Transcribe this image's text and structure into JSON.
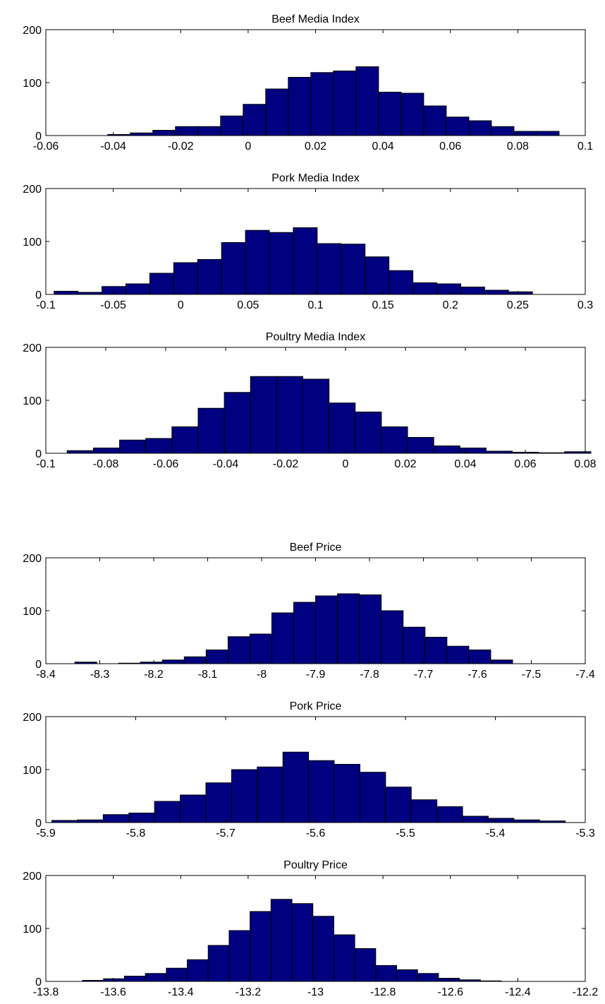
{
  "chart_data": [
    {
      "type": "bar",
      "title": "Beef Media Index",
      "xlim": [
        -0.06,
        0.1
      ],
      "ylim": [
        0,
        200
      ],
      "xticks": [
        "-0.06",
        "-0.04",
        "-0.02",
        "0",
        "0.02",
        "0.04",
        "0.06",
        "0.08",
        "0.1"
      ],
      "yticks": [
        "0",
        "100",
        "200"
      ],
      "bin_range": [
        -0.0383,
        0.0889
      ],
      "values": [
        2,
        5,
        10,
        17,
        17,
        37,
        59,
        88,
        110,
        119,
        122,
        130,
        82,
        80,
        56,
        35,
        28,
        17,
        8,
        8
      ],
      "bar_color": "#000080"
    },
    {
      "type": "bar",
      "title": "Pork Media Index",
      "xlim": [
        -0.1,
        0.3
      ],
      "ylim": [
        0,
        200
      ],
      "xticks": [
        "-0.1",
        "-0.05",
        "0",
        "0.05",
        "0.1",
        "0.15",
        "0.2",
        "0.25",
        "0.3"
      ],
      "yticks": [
        "0",
        "100",
        "200"
      ],
      "bin_range": [
        -0.085,
        0.252
      ],
      "values": [
        6,
        4,
        15,
        20,
        40,
        60,
        66,
        98,
        121,
        117,
        126,
        96,
        95,
        71,
        45,
        22,
        20,
        14,
        8,
        5
      ],
      "bar_color": "#000080"
    },
    {
      "type": "bar",
      "title": "Poultry Media Index",
      "xlim": [
        -0.1,
        0.08
      ],
      "ylim": [
        0,
        200
      ],
      "xticks": [
        "-0.1",
        "-0.08",
        "-0.06",
        "-0.04",
        "-0.02",
        "0",
        "0.02",
        "0.04",
        "0.06",
        "0.08"
      ],
      "yticks": [
        "0",
        "100",
        "200"
      ],
      "bin_range": [
        -0.0885,
        0.0775
      ],
      "values": [
        5,
        10,
        25,
        28,
        50,
        85,
        115,
        145,
        145,
        140,
        95,
        78,
        50,
        30,
        14,
        10,
        4,
        2,
        1,
        3
      ],
      "bar_color": "#000080"
    },
    {
      "type": "bar",
      "title": "Beef Price",
      "xlim": [
        -8.4,
        -7.4
      ],
      "ylim": [
        0,
        200
      ],
      "xticks": [
        "-8.4",
        "-8.3",
        "-8.2",
        "-8.1",
        "-8",
        "-7.9",
        "-7.8",
        "-7.7",
        "-7.6",
        "-7.5",
        "-7.4"
      ],
      "yticks": [
        "0",
        "100",
        "200"
      ],
      "bin_range": [
        -8.326,
        -7.555
      ],
      "values": [
        3,
        0,
        1,
        3,
        7,
        13,
        26,
        51,
        56,
        96,
        116,
        128,
        132,
        130,
        100,
        69,
        50,
        33,
        26,
        7
      ],
      "bar_color": "#000080"
    },
    {
      "type": "bar",
      "title": "Pork Price",
      "xlim": [
        -5.9,
        -5.3
      ],
      "ylim": [
        0,
        200
      ],
      "xticks": [
        "-5.9",
        "-5.8",
        "-5.7",
        "-5.6",
        "-5.5",
        "-5.4",
        "-5.3"
      ],
      "yticks": [
        "0",
        "100",
        "200"
      ],
      "bin_range": [
        -5.879,
        -5.3365
      ],
      "values": [
        4,
        5,
        15,
        18,
        40,
        52,
        75,
        100,
        105,
        133,
        117,
        110,
        95,
        67,
        43,
        30,
        12,
        8,
        5,
        3
      ],
      "bar_color": "#000080"
    },
    {
      "type": "bar",
      "title": "Poultry Price",
      "xlim": [
        -13.8,
        -12.2
      ],
      "ylim": [
        0,
        200
      ],
      "xticks": [
        "-13.8",
        "-13.6",
        "-13.4",
        "-13.2",
        "-13",
        "-12.8",
        "-12.6",
        "-12.4",
        "-12.2"
      ],
      "yticks": [
        "0",
        "100",
        "200"
      ],
      "bin_range": [
        -13.66,
        -12.48
      ],
      "values": [
        2,
        5,
        10,
        15,
        25,
        41,
        68,
        96,
        132,
        155,
        147,
        123,
        88,
        62,
        30,
        22,
        15,
        6,
        3,
        1
      ],
      "bar_color": "#000080"
    }
  ]
}
